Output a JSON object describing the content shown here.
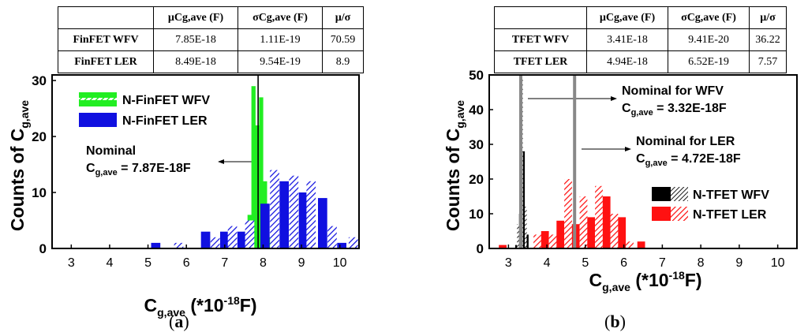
{
  "tables": [
    {
      "headers": [
        "",
        "µCg,ave (F)",
        "σCg,ave (F)",
        "µ/σ"
      ],
      "rows": [
        [
          "FinFET WFV",
          "7.85E-18",
          "1.11E-19",
          "70.59"
        ],
        [
          "FinFET LER",
          "8.49E-18",
          "9.54E-19",
          "8.9"
        ]
      ]
    },
    {
      "headers": [
        "",
        "µCg,ave (F)",
        "σCg,ave (F)",
        "µ/σ"
      ],
      "rows": [
        [
          "TFET WFV",
          "3.41E-18",
          "9.41E-20",
          "36.22"
        ],
        [
          "TFET LER",
          "4.94E-18",
          "6.52E-19",
          "7.57"
        ]
      ]
    }
  ],
  "captions": [
    "a",
    "b"
  ],
  "colors": {
    "green": "#22ee22",
    "blue": "#1010e0",
    "black": "#000000",
    "red": "#ff1111",
    "gray": "#888888"
  },
  "chart_data": [
    {
      "type": "bar",
      "panel": "a",
      "xlabel": "C",
      "xlabel_sub": "g,ave",
      "xlabel_rest": " (*10",
      "xlabel_sup": "-18",
      "xlabel_end": "F)",
      "ylabel": "Counts of C",
      "ylabel_sub": "g,ave",
      "xlim": [
        2.5,
        10.5
      ],
      "ylim": [
        0,
        31
      ],
      "xticks": [
        3,
        4,
        5,
        6,
        7,
        8,
        9,
        10
      ],
      "yticks": [
        0,
        10,
        20,
        30
      ],
      "nominal_line": 7.87,
      "annotation": {
        "title": "Nominal",
        "label_main": "C",
        "label_sub": "g,ave",
        "label_value": " = 7.87E-18F"
      },
      "legend": [
        "N-FinFET WFV",
        "N-FinFET LER"
      ],
      "series": [
        {
          "name": "N-FinFET WFV",
          "color": "green",
          "width": 0.11,
          "points": [
            [
              7.45,
              1
            ],
            [
              7.55,
              3
            ],
            [
              7.65,
              6
            ],
            [
              7.75,
              29
            ],
            [
              7.85,
              22
            ],
            [
              7.95,
              27
            ],
            [
              8.05,
              12
            ],
            [
              8.15,
              2
            ]
          ]
        },
        {
          "name": "N-FinFET LER",
          "color": "blue",
          "width": 0.24,
          "points": [
            [
              5.2,
              1
            ],
            [
              5.8,
              1
            ],
            [
              6.5,
              3
            ],
            [
              6.75,
              2
            ],
            [
              7.0,
              3
            ],
            [
              7.2,
              4
            ],
            [
              7.45,
              3
            ],
            [
              7.65,
              5
            ],
            [
              8.05,
              8
            ],
            [
              8.3,
              14
            ],
            [
              8.55,
              12
            ],
            [
              8.8,
              13
            ],
            [
              9.05,
              10
            ],
            [
              9.25,
              12
            ],
            [
              9.55,
              9
            ],
            [
              9.8,
              4
            ],
            [
              10.05,
              1
            ],
            [
              10.35,
              2
            ]
          ]
        }
      ]
    },
    {
      "type": "bar",
      "panel": "b",
      "xlabel": "C",
      "xlabel_sub": "g,ave",
      "xlabel_rest": " (*10",
      "xlabel_sup": "-18",
      "xlabel_end": "F)",
      "ylabel": "Counts of C",
      "ylabel_sub": "g,ave",
      "xlim": [
        2.5,
        10.5
      ],
      "ylim": [
        0,
        50
      ],
      "xticks": [
        3,
        4,
        5,
        6,
        7,
        8,
        9,
        10
      ],
      "yticks": [
        0,
        10,
        20,
        30,
        40,
        50
      ],
      "nominal_lines": [
        3.32,
        4.72
      ],
      "annotations": [
        {
          "title": "Nominal for WFV",
          "label_main": "C",
          "label_sub": "g,ave",
          "label_value": " = 3.32E-18F"
        },
        {
          "title": "Nominal for LER",
          "label_main": "C",
          "label_sub": "g,ave",
          "label_value": " = 4.72E-18F"
        }
      ],
      "legend": [
        "N-TFET WFV",
        "N-TFET LER"
      ],
      "series": [
        {
          "name": "N-TFET WFV",
          "color": "black",
          "width": 0.05,
          "points": [
            [
              3.2,
              1
            ],
            [
              3.25,
              7
            ],
            [
              3.3,
              10
            ],
            [
              3.35,
              49
            ],
            [
              3.4,
              28
            ],
            [
              3.45,
              12
            ],
            [
              3.5,
              4
            ]
          ]
        },
        {
          "name": "N-TFET LER",
          "color": "red",
          "width": 0.2,
          "points": [
            [
              2.85,
              1
            ],
            [
              3.75,
              4
            ],
            [
              3.95,
              5
            ],
            [
              4.15,
              4
            ],
            [
              4.35,
              8
            ],
            [
              4.55,
              20
            ],
            [
              4.75,
              7
            ],
            [
              4.95,
              15
            ],
            [
              5.15,
              9
            ],
            [
              5.35,
              18
            ],
            [
              5.55,
              15
            ],
            [
              5.75,
              10
            ],
            [
              5.95,
              9
            ],
            [
              6.15,
              2
            ],
            [
              6.45,
              2
            ]
          ]
        }
      ]
    }
  ]
}
